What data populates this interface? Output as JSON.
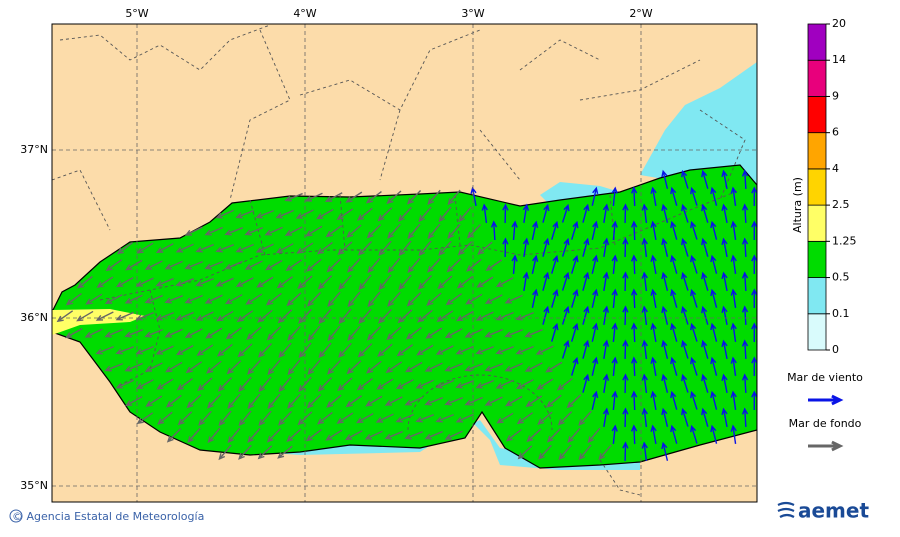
{
  "map": {
    "lon_ticks": [
      {
        "value": -5,
        "label": "5°W"
      },
      {
        "value": -4,
        "label": "4°W"
      },
      {
        "value": -3,
        "label": "3°W"
      },
      {
        "value": -2,
        "label": "2°W"
      }
    ],
    "lat_ticks": [
      {
        "value": 37,
        "label": "37°N"
      },
      {
        "value": 36,
        "label": "36°N"
      },
      {
        "value": 35,
        "label": "35°N"
      }
    ],
    "colorbar": {
      "title": "Altura (m)",
      "levels": [
        0,
        0.1,
        0.5,
        1.25,
        2.5,
        4,
        6,
        9,
        14,
        20
      ],
      "colors": [
        "#d9fbfc",
        "#80e8f2",
        "#00dc00",
        "#ffff66",
        "#ffd400",
        "#ffa500",
        "#ff0000",
        "#e8007c",
        "#a000c0"
      ]
    },
    "legend": [
      {
        "label": "Mar de viento",
        "color": "#0a14e6"
      },
      {
        "label": "Mar de fondo",
        "color": "#666666"
      }
    ],
    "footer": {
      "credit": "© Agencia Estatal de Meteorología",
      "logo": "aemet"
    }
  }
}
